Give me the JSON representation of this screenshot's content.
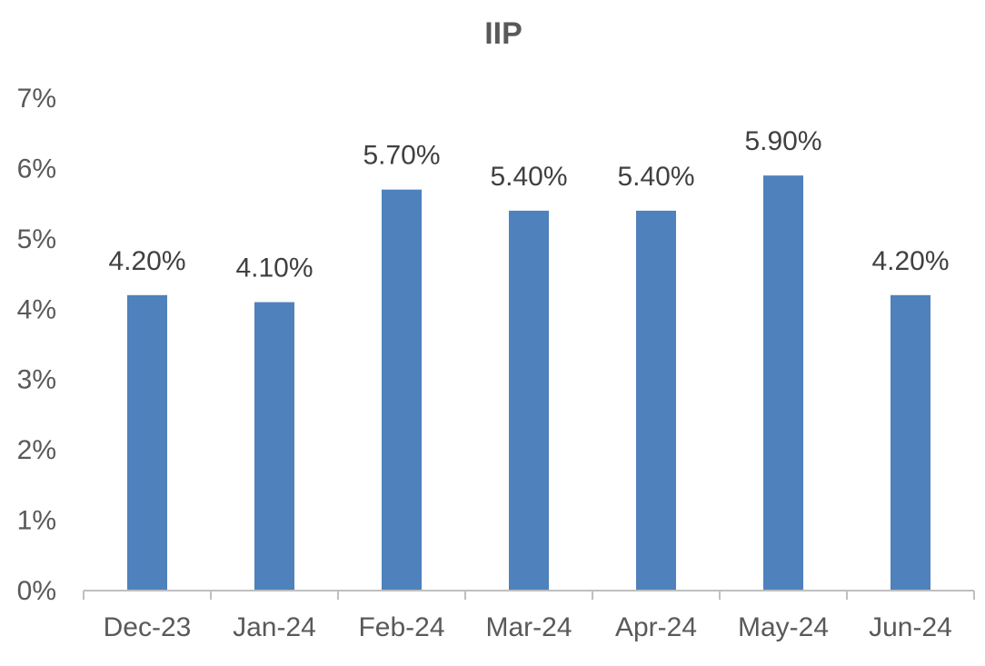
{
  "chart_data": {
    "type": "bar",
    "title": "IIP",
    "categories": [
      "Dec-23",
      "Jan-24",
      "Feb-24",
      "Mar-24",
      "Apr-24",
      "May-24",
      "Jun-24"
    ],
    "values": [
      4.2,
      4.1,
      5.7,
      5.4,
      5.4,
      5.9,
      4.2
    ],
    "data_labels": [
      "4.20%",
      "4.10%",
      "5.70%",
      "5.40%",
      "5.40%",
      "5.90%",
      "4.20%"
    ],
    "y_ticks": [
      0,
      1,
      2,
      3,
      4,
      5,
      6,
      7
    ],
    "y_tick_labels": [
      "0%",
      "1%",
      "2%",
      "3%",
      "4%",
      "5%",
      "6%",
      "7%"
    ],
    "ylim": [
      0,
      7
    ],
    "grid": false,
    "legend": "none",
    "bar_color": "#4f81bd",
    "axis_color": "#bfbfbf"
  }
}
